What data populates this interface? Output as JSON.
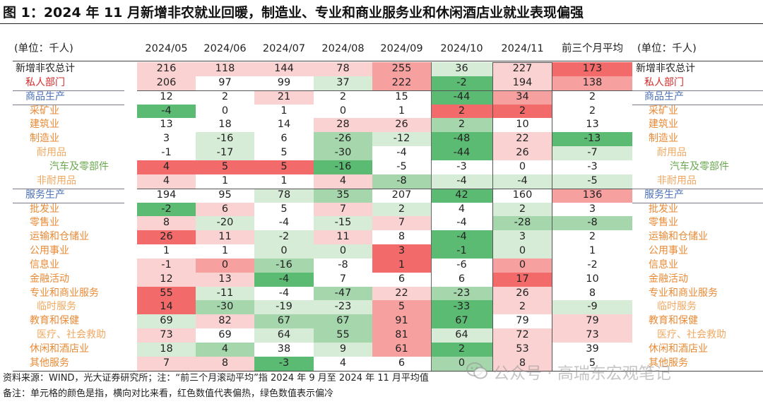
{
  "title": "图 1：2024 年 11 月新增非农就业回暖，制造业、专业和商业服务业和休闲酒店业就业表现偏强",
  "unit_left": "(单位：千人)",
  "unit_right": "(单位：千人)",
  "footer": {
    "source": "资料来源：WIND，光大证券研究所；注：“前三个月滚动平均”指 2024 年 9 月至 2024 年 11 月平均值",
    "note": "备注：单元格的颜色是指，横向对比来看，红色数值代表偏热，绿色数值表示偏冷"
  },
  "watermark": "公众号 · 高瑞东宏观笔记",
  "colors": {
    "hot": "#f26a6a",
    "cold": "#5cbb72",
    "label_black": "#222222",
    "label_red": "#d42a2a",
    "label_blue": "#4a6fb5",
    "label_orange": "#e98a35",
    "label_lightorange": "#f0a860",
    "label_green": "#6aa84f"
  },
  "chart_data": {
    "type": "table",
    "title": "图 1：2024 年 11 月新增非农就业回暖，制造业、专业和商业服务业和休闲酒店业就业表现偏强",
    "unit": "千人",
    "columns": [
      "2024/05",
      "2024/06",
      "2024/07",
      "2024/08",
      "2024/09",
      "2024/10",
      "2024/11",
      "前三个月平均"
    ],
    "highlight_column": "2024/11",
    "rows": [
      {
        "label": "新增非农总计",
        "style": "black",
        "indent": 0,
        "values": [
          216,
          118,
          144,
          78,
          255,
          36,
          227,
          173
        ],
        "heat": [
          1,
          1,
          1,
          1,
          2,
          -1,
          1,
          3
        ]
      },
      {
        "label": "私人部门",
        "style": "red",
        "indent": 1,
        "values": [
          206,
          97,
          99,
          37,
          222,
          -2,
          194,
          138
        ],
        "heat": [
          1,
          0,
          0,
          -1,
          2,
          -3,
          1,
          2
        ]
      },
      {
        "label": "商品生产",
        "style": "blue",
        "indent": 1,
        "separator": true,
        "values": [
          12,
          2,
          21,
          2,
          15,
          -44,
          34,
          2
        ],
        "heat": [
          0,
          0,
          1,
          0,
          0,
          -3,
          2,
          0
        ]
      },
      {
        "label": "采矿业",
        "style": "orange",
        "indent": 2,
        "values": [
          -4,
          0,
          1,
          0,
          1,
          2,
          2,
          2
        ],
        "heat": [
          -3,
          0,
          0,
          0,
          0,
          3,
          3,
          0
        ]
      },
      {
        "label": "建筑业",
        "style": "orange",
        "indent": 2,
        "values": [
          13,
          18,
          14,
          28,
          26,
          2,
          10,
          13
        ],
        "heat": [
          0,
          0,
          0,
          1,
          1,
          -2,
          0,
          0
        ]
      },
      {
        "label": "制造业",
        "style": "orange",
        "indent": 2,
        "values": [
          3,
          -16,
          6,
          -26,
          -12,
          -48,
          22,
          -13
        ],
        "heat": [
          0,
          -1,
          0,
          -2,
          -1,
          -3,
          1,
          -3
        ]
      },
      {
        "label": "耐用品",
        "style": "lightorange",
        "indent": 3,
        "values": [
          -1,
          -17,
          5,
          -30,
          -4,
          -44,
          26,
          -7
        ],
        "heat": [
          0,
          -1,
          0,
          -2,
          0,
          -3,
          1,
          -1
        ]
      },
      {
        "label": "汽车及零部件",
        "style": "green",
        "indent": 4,
        "values": [
          4,
          5,
          5,
          -16,
          -5,
          -3,
          0,
          -3
        ],
        "heat": [
          3,
          3,
          3,
          -3,
          0,
          0,
          0,
          0
        ]
      },
      {
        "label": "非耐用品",
        "style": "lightorange",
        "indent": 3,
        "values": [
          4,
          1,
          1,
          4,
          -8,
          -4,
          -4,
          -5
        ],
        "heat": [
          1,
          0,
          0,
          1,
          -2,
          -1,
          -1,
          -1
        ]
      },
      {
        "label": "服务生产",
        "style": "blue",
        "indent": 1,
        "separator": true,
        "values": [
          194,
          95,
          78,
          35,
          207,
          42,
          160,
          136
        ],
        "heat": [
          0,
          0,
          -1,
          -2,
          0,
          -3,
          0,
          2
        ]
      },
      {
        "label": "批发业",
        "style": "orange",
        "indent": 2,
        "values": [
          -2,
          6,
          5,
          7,
          2,
          4,
          2,
          3
        ],
        "heat": [
          -3,
          1,
          0,
          1,
          -1,
          0,
          -1,
          0
        ]
      },
      {
        "label": "零售业",
        "style": "orange",
        "indent": 2,
        "values": [
          8,
          -20,
          -4,
          -15,
          7,
          -4,
          -28,
          -8
        ],
        "heat": [
          1,
          -1,
          0,
          -1,
          1,
          0,
          -2,
          -2
        ]
      },
      {
        "label": "运输和仓储业",
        "style": "orange",
        "indent": 2,
        "values": [
          26,
          11,
          -2,
          11,
          8,
          -4,
          3,
          2
        ],
        "heat": [
          3,
          1,
          -1,
          1,
          0,
          -3,
          -1,
          0
        ]
      },
      {
        "label": "公用事业",
        "style": "orange",
        "indent": 2,
        "values": [
          1,
          1,
          0,
          0,
          3,
          -1,
          0,
          1
        ],
        "heat": [
          0,
          0,
          -1,
          -1,
          3,
          -3,
          -1,
          0
        ]
      },
      {
        "label": "信息业",
        "style": "orange",
        "indent": 2,
        "values": [
          -1,
          0,
          -16,
          -8,
          1,
          -6,
          0,
          -2
        ],
        "heat": [
          1,
          2,
          -2,
          0,
          3,
          0,
          2,
          0
        ]
      },
      {
        "label": "金融活动",
        "style": "orange",
        "indent": 2,
        "values": [
          12,
          13,
          -4,
          7,
          6,
          6,
          17,
          10
        ],
        "heat": [
          1,
          1,
          -3,
          0,
          0,
          0,
          3,
          0
        ]
      },
      {
        "label": "专业和商业服务",
        "style": "orange",
        "indent": 2,
        "values": [
          55,
          -11,
          -4,
          -47,
          22,
          -23,
          26,
          8
        ],
        "heat": [
          3,
          -1,
          0,
          -2,
          1,
          -2,
          1,
          0
        ]
      },
      {
        "label": "临时服务",
        "style": "lightorange",
        "indent": 3,
        "values": [
          14,
          -30,
          -19,
          -23,
          5,
          -33,
          2,
          -9
        ],
        "heat": [
          3,
          -2,
          -1,
          -1,
          2,
          -3,
          1,
          -1
        ]
      },
      {
        "label": "教育和保健",
        "style": "orange",
        "indent": 2,
        "values": [
          69,
          82,
          67,
          67,
          91,
          67,
          79,
          79
        ],
        "heat": [
          -1,
          1,
          -2,
          -2,
          2,
          -3,
          0,
          1
        ]
      },
      {
        "label": "医疗、社会救助",
        "style": "lightorange",
        "indent": 3,
        "values": [
          73,
          69,
          64,
          55,
          81,
          64,
          72,
          73
        ],
        "heat": [
          1,
          0,
          -1,
          -2,
          2,
          -1,
          1,
          1
        ]
      },
      {
        "label": "休闲和酒店业",
        "style": "orange",
        "indent": 2,
        "values": [
          18,
          4,
          38,
          9,
          61,
          2,
          53,
          39
        ],
        "heat": [
          -1,
          -2,
          0,
          -1,
          2,
          -3,
          1,
          0
        ]
      },
      {
        "label": "其他服务",
        "style": "orange",
        "indent": 2,
        "values": [
          7,
          8,
          -3,
          4,
          6,
          0,
          8,
          5
        ],
        "heat": [
          1,
          1,
          -3,
          0,
          0,
          -2,
          1,
          0
        ]
      }
    ]
  }
}
